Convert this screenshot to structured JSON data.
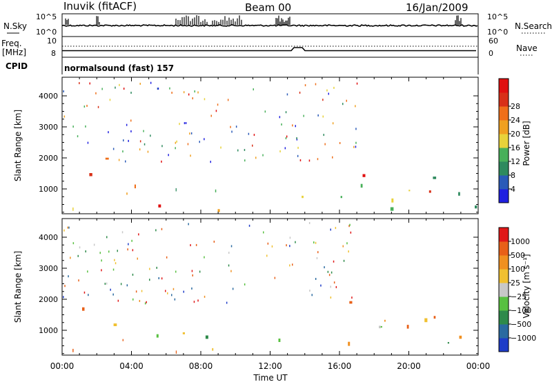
{
  "header": {
    "station": "Inuvik (fitACF)",
    "beam": "Beam 00",
    "date": "16/Jan/2009"
  },
  "summary_panel": {
    "left_top_label": "N.Sky",
    "left_bottom_label": "Freq.",
    "left_bottom_unit": "[MHz]",
    "cpid_label": "CPID",
    "nsky_ticks": [
      "10^5",
      "10^0"
    ],
    "freq_ticks": [
      "10",
      "8"
    ],
    "right_top_label": "N.Search",
    "right_bottom_label": "Nave",
    "nsearch_ticks": [
      "10^5",
      "10^0"
    ],
    "nave_ticks": [
      "60",
      "0"
    ],
    "program": "normalsound (fast) 157",
    "colors": {
      "line": "#000000",
      "dotted": "#000000"
    }
  },
  "chart_data": [
    {
      "type": "heatmap",
      "name": "power",
      "ylabel": "Slant Range [km]",
      "xlabel": "",
      "yticks": [
        "1000",
        "2000",
        "3000",
        "4000"
      ],
      "ylim": [
        200,
        4600
      ],
      "xlim": [
        0,
        24
      ],
      "colorbar": {
        "label": "Power [dB]",
        "ticks": [
          "4",
          "8",
          "12",
          "16",
          "20",
          "24",
          "28"
        ],
        "colors": [
          "#1f1fe0",
          "#2a5ab8",
          "#2e8a5e",
          "#48b05a",
          "#e8d23a",
          "#f0a020",
          "#ef6f1a",
          "#d83018",
          "#e01010"
        ]
      }
    },
    {
      "type": "heatmap",
      "name": "velocity",
      "ylabel": "Slant Range [km]",
      "xlabel": "Time UT",
      "xticks": [
        "00:00",
        "04:00",
        "08:00",
        "12:00",
        "16:00",
        "20:00",
        "00:00"
      ],
      "yticks": [
        "1000",
        "2000",
        "3000",
        "4000"
      ],
      "ylim": [
        200,
        4600
      ],
      "xlim": [
        0,
        24
      ],
      "colorbar": {
        "label": "Velocity [m s⁻¹]",
        "ticks": [
          "1000",
          "500",
          "100",
          "25",
          "−25",
          "−100",
          "−500",
          "−1000"
        ],
        "colors": [
          "#1e3cc8",
          "#2a6aa0",
          "#2e8a4a",
          "#58c040",
          "#c8c8c8",
          "#f0c030",
          "#f09020",
          "#e86018",
          "#e01818"
        ]
      }
    }
  ]
}
